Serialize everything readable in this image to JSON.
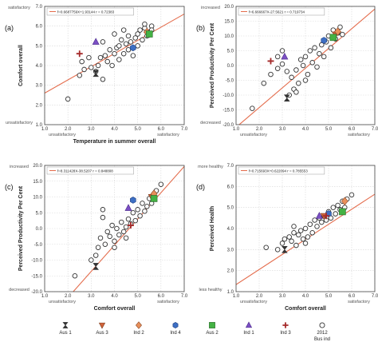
{
  "legend_items": [
    {
      "key": "aus1",
      "label": "Aus 1",
      "symbol": "hourglass",
      "color": "#333333"
    },
    {
      "key": "aus3",
      "label": "Aus 3",
      "symbol": "triangle-down",
      "color": "#d0633a"
    },
    {
      "key": "ind2",
      "label": "Ind 2",
      "symbol": "diamond",
      "color": "#e88f5a"
    },
    {
      "key": "ind4",
      "label": "Ind 4",
      "symbol": "hexagon",
      "color": "#3d6fc4"
    },
    {
      "key": "aus2",
      "label": "Aus 2",
      "symbol": "square",
      "color": "#44b244"
    },
    {
      "key": "ind1",
      "label": "Ind 1",
      "symbol": "triangle-up",
      "color": "#7b4fc4"
    },
    {
      "key": "ind3",
      "label": "Ind 3",
      "symbol": "plus",
      "color": "#a52a2a"
    },
    {
      "key": "y2012",
      "label": "2012",
      "symbol": "circle",
      "color": "#333333"
    }
  ],
  "legend_footer": "Bus ind",
  "colors": {
    "fit_line": "#e46c4c",
    "grid": "#d7d7d7",
    "frame": "#444444",
    "point": "#333333"
  },
  "chart_data": [
    {
      "panel_label": "(a)",
      "type": "scatter",
      "xlabel": "Temperature in summer overall",
      "ylabel": "Comfort overall",
      "xlim": [
        1.0,
        7.0
      ],
      "ylim": [
        1.0,
        7.0
      ],
      "xticks": [
        "1.0",
        "2.0",
        "3.0",
        "4.0",
        "5.0",
        "6.0",
        "7.0"
      ],
      "yticks": [
        "1.0",
        "2.0",
        "3.0",
        "4.0",
        "5.0",
        "6.0",
        "7.0"
      ],
      "x_low": "unsatisfactory",
      "x_high": "satisfactory",
      "y_low": "unsatisfactory",
      "y_high": "satisfactory",
      "grid": true,
      "fit_text": "f=0.6687759X+1.93144  r = 0.72383",
      "fit": {
        "slope": 0.6687759,
        "intercept": 1.93144
      },
      "points_2012": [
        [
          2.0,
          2.3
        ],
        [
          2.5,
          3.5
        ],
        [
          2.6,
          4.2
        ],
        [
          2.7,
          3.8
        ],
        [
          2.9,
          4.4
        ],
        [
          3.0,
          3.9
        ],
        [
          3.2,
          3.7
        ],
        [
          3.3,
          4.0
        ],
        [
          3.4,
          4.4
        ],
        [
          3.5,
          3.3
        ],
        [
          3.6,
          4.5
        ],
        [
          3.7,
          4.2
        ],
        [
          3.8,
          4.8
        ],
        [
          3.9,
          4.0
        ],
        [
          4.0,
          4.6
        ],
        [
          4.1,
          4.9
        ],
        [
          4.2,
          5.0
        ],
        [
          4.2,
          4.3
        ],
        [
          4.3,
          5.3
        ],
        [
          4.4,
          4.6
        ],
        [
          4.5,
          5.1
        ],
        [
          4.6,
          4.8
        ],
        [
          4.6,
          5.5
        ],
        [
          4.7,
          5.2
        ],
        [
          4.8,
          4.5
        ],
        [
          4.9,
          5.4
        ],
        [
          5.0,
          5.6
        ],
        [
          5.0,
          5.0
        ],
        [
          5.1,
          5.8
        ],
        [
          5.2,
          5.3
        ],
        [
          5.3,
          5.9
        ],
        [
          5.4,
          5.5
        ],
        [
          5.5,
          5.7
        ],
        [
          5.6,
          6.0
        ],
        [
          5.3,
          6.1
        ],
        [
          5.6,
          5.8
        ],
        [
          4.0,
          5.6
        ],
        [
          3.5,
          5.2
        ],
        [
          4.4,
          5.8
        ]
      ],
      "markers": {
        "aus1": [
          3.2,
          3.6
        ],
        "aus3": [
          5.5,
          5.6
        ],
        "ind2": [
          5.4,
          5.7
        ],
        "ind4": [
          4.8,
          4.9
        ],
        "aus2": [
          5.5,
          5.6
        ],
        "ind1": [
          3.2,
          5.2
        ],
        "ind3": [
          2.5,
          4.6
        ]
      }
    },
    {
      "panel_label": "(b)",
      "type": "scatter",
      "xlabel": "",
      "ylabel": "Perceived Productivity Per Cent",
      "xlim": [
        1.0,
        7.0
      ],
      "ylim": [
        -20.0,
        20.0
      ],
      "xticks": [
        "1.0",
        "2.0",
        "3.0",
        "4.0",
        "5.0",
        "6.0",
        "7.0"
      ],
      "yticks": [
        "-20.0",
        "-15.0",
        "-10.0",
        "-5.0",
        "0.0",
        "5.0",
        "10.0",
        "15.0",
        "20.0"
      ],
      "x_low": "unsatisfactory",
      "x_high": "satisfactory",
      "y_low": "decreased",
      "y_high": "increased",
      "grid": true,
      "fit_text": "f=6.666667X-27.5621  r = 0.719734",
      "fit": {
        "slope": 6.666667,
        "intercept": -27.5621
      },
      "points_2012": [
        [
          1.7,
          -14.5
        ],
        [
          2.2,
          -6.0
        ],
        [
          2.5,
          -3.0
        ],
        [
          2.8,
          -1.0
        ],
        [
          3.0,
          0.5
        ],
        [
          3.2,
          -2.0
        ],
        [
          3.3,
          -10.0
        ],
        [
          3.4,
          -4.0
        ],
        [
          3.5,
          -8.0
        ],
        [
          3.6,
          -1.5
        ],
        [
          3.7,
          -6.0
        ],
        [
          3.8,
          2.0
        ],
        [
          3.9,
          0.0
        ],
        [
          4.0,
          3.0
        ],
        [
          4.1,
          -3.0
        ],
        [
          4.2,
          5.0
        ],
        [
          4.3,
          1.0
        ],
        [
          4.4,
          6.0
        ],
        [
          4.5,
          -0.5
        ],
        [
          4.6,
          4.0
        ],
        [
          4.7,
          7.0
        ],
        [
          4.8,
          3.0
        ],
        [
          4.9,
          8.0
        ],
        [
          5.0,
          10.0
        ],
        [
          5.1,
          6.0
        ],
        [
          5.2,
          12.0
        ],
        [
          5.3,
          9.0
        ],
        [
          5.4,
          11.0
        ],
        [
          5.5,
          13.0
        ],
        [
          5.6,
          10.5
        ],
        [
          3.0,
          5.0
        ],
        [
          2.8,
          3.0
        ],
        [
          4.0,
          -5.0
        ],
        [
          3.6,
          -9.0
        ]
      ],
      "markers": {
        "aus1": [
          3.2,
          -11.0
        ],
        "aus3": [
          5.3,
          10.5
        ],
        "ind2": [
          5.4,
          11.5
        ],
        "ind4": [
          4.8,
          8.5
        ],
        "aus2": [
          5.2,
          9.5
        ],
        "ind1": [
          3.1,
          3.0
        ],
        "ind3": [
          2.5,
          1.5
        ]
      }
    },
    {
      "panel_label": "(c)",
      "type": "scatter",
      "xlabel": "Comfort overall",
      "ylabel": "Perceived Productivity Per Cent",
      "xlim": [
        1.0,
        7.0
      ],
      "ylim": [
        -20.0,
        20.0
      ],
      "xticks": [
        "1.0",
        "2.0",
        "3.0",
        "4.0",
        "5.0",
        "6.0",
        "7.0"
      ],
      "yticks": [
        "-20.0",
        "-15.0",
        "-10.0",
        "-5.0",
        "0.0",
        "5.0",
        "10.0",
        "15.0",
        "20.0"
      ],
      "x_low": "unsatisfactory",
      "x_high": "satisfactory",
      "y_low": "decreased",
      "y_high": "increased",
      "grid": true,
      "fit_text": "f=8.311428X-38.5207  r = 0.848808",
      "fit": {
        "slope": 8.311428,
        "intercept": -38.5207
      },
      "points_2012": [
        [
          2.3,
          -15.0
        ],
        [
          3.0,
          -10.0
        ],
        [
          3.2,
          -8.5
        ],
        [
          3.3,
          -6.0
        ],
        [
          3.4,
          -3.0
        ],
        [
          3.5,
          3.5
        ],
        [
          3.6,
          -5.0
        ],
        [
          3.7,
          -1.0
        ],
        [
          3.8,
          -2.5
        ],
        [
          3.9,
          1.0
        ],
        [
          4.0,
          -4.0
        ],
        [
          4.1,
          0.0
        ],
        [
          4.2,
          -2.0
        ],
        [
          4.3,
          2.0
        ],
        [
          4.4,
          -1.0
        ],
        [
          4.5,
          0.5
        ],
        [
          4.6,
          3.0
        ],
        [
          4.7,
          1.5
        ],
        [
          4.8,
          5.0
        ],
        [
          4.9,
          2.5
        ],
        [
          5.0,
          6.0
        ],
        [
          5.1,
          4.0
        ],
        [
          5.2,
          8.0
        ],
        [
          5.3,
          5.5
        ],
        [
          5.4,
          7.0
        ],
        [
          5.5,
          9.5
        ],
        [
          5.6,
          8.0
        ],
        [
          5.7,
          10.5
        ],
        [
          5.8,
          12.0
        ],
        [
          6.0,
          14.0
        ],
        [
          3.5,
          6.0
        ],
        [
          4.0,
          -6.0
        ],
        [
          4.5,
          -3.0
        ]
      ],
      "markers": {
        "aus1": [
          3.2,
          -12.0
        ],
        "aus3": [
          5.6,
          10.0
        ],
        "ind2": [
          5.7,
          11.0
        ],
        "ind4": [
          4.8,
          9.0
        ],
        "aus2": [
          5.7,
          9.5
        ],
        "ind1": [
          4.6,
          6.5
        ],
        "ind3": [
          4.7,
          1.0
        ]
      }
    },
    {
      "panel_label": "(d)",
      "type": "scatter",
      "xlabel": "Comfort overall",
      "ylabel": "Perceived Health",
      "xlim": [
        1.0,
        7.0
      ],
      "ylim": [
        1.0,
        7.0
      ],
      "xticks": [
        "1.0",
        "2.0",
        "3.0",
        "4.0",
        "5.0",
        "6.0",
        "7.0"
      ],
      "yticks": [
        "1.0",
        "2.0",
        "3.0",
        "4.0",
        "5.0",
        "6.0",
        "7.0"
      ],
      "x_low": "unsatisfactory",
      "x_high": "satisfactory",
      "y_low": "less healthy",
      "y_high": "more healthy",
      "grid": true,
      "fit_text": "f=0.715693X+0.622094  r = 0.785553",
      "fit": {
        "slope": 0.715693,
        "intercept": 0.622094
      },
      "points_2012": [
        [
          2.3,
          3.1
        ],
        [
          2.8,
          3.0
        ],
        [
          3.0,
          3.3
        ],
        [
          3.1,
          3.5
        ],
        [
          3.3,
          3.6
        ],
        [
          3.4,
          3.4
        ],
        [
          3.5,
          3.8
        ],
        [
          3.6,
          3.2
        ],
        [
          3.7,
          3.7
        ],
        [
          3.8,
          3.9
        ],
        [
          3.9,
          3.5
        ],
        [
          4.0,
          4.0
        ],
        [
          4.1,
          3.6
        ],
        [
          4.2,
          4.2
        ],
        [
          4.3,
          3.8
        ],
        [
          4.4,
          4.4
        ],
        [
          4.5,
          4.1
        ],
        [
          4.6,
          4.5
        ],
        [
          4.7,
          4.3
        ],
        [
          4.8,
          4.6
        ],
        [
          4.9,
          4.4
        ],
        [
          5.0,
          4.8
        ],
        [
          5.1,
          4.5
        ],
        [
          5.2,
          5.0
        ],
        [
          5.3,
          4.7
        ],
        [
          5.4,
          5.1
        ],
        [
          5.5,
          4.9
        ],
        [
          5.6,
          5.3
        ],
        [
          5.7,
          5.0
        ],
        [
          5.8,
          5.4
        ],
        [
          6.0,
          5.6
        ],
        [
          4.0,
          3.3
        ],
        [
          3.5,
          4.1
        ]
      ],
      "markers": {
        "aus1": [
          3.1,
          3.0
        ],
        "aus3": [
          4.8,
          4.6
        ],
        "ind2": [
          5.7,
          5.3
        ],
        "ind4": [
          5.0,
          4.7
        ],
        "aus2": [
          5.6,
          4.8
        ],
        "ind1": [
          4.6,
          4.6
        ],
        "ind3": [
          4.9,
          4.6
        ]
      }
    }
  ]
}
